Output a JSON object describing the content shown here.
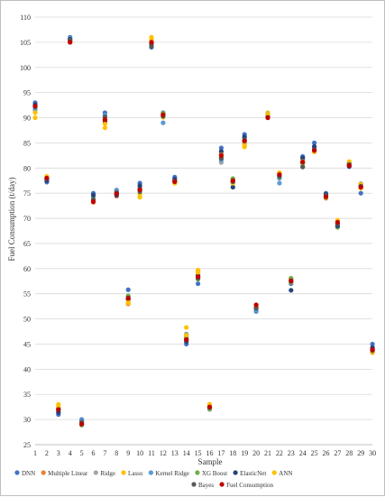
{
  "chart_data": {
    "type": "scatter",
    "title": "",
    "xlabel": "Sample",
    "ylabel": "Fuel Consumption (t/day)",
    "xlim": [
      1,
      30
    ],
    "ylim": [
      25,
      110
    ],
    "grid": true,
    "legend_position": "bottom",
    "x": [
      1,
      2,
      3,
      4,
      5,
      6,
      7,
      8,
      9,
      10,
      11,
      12,
      13,
      14,
      15,
      16,
      17,
      18,
      19,
      20,
      21,
      22,
      23,
      24,
      25,
      26,
      27,
      28,
      29,
      30
    ],
    "x_tick_labels": [
      "1",
      "2",
      "3",
      "4",
      "5",
      "6",
      "7",
      "8",
      "9",
      "10",
      "11",
      "12",
      "13",
      "14",
      "15",
      "16",
      "17",
      "18",
      "19",
      "20",
      "21",
      "22",
      "23",
      "24",
      "25",
      "26",
      "27",
      "28",
      "29",
      "30"
    ],
    "y_tick_labels": [
      "25",
      "30",
      "35",
      "40",
      "45",
      "50",
      "55",
      "60",
      "65",
      "70",
      "75",
      "80",
      "85",
      "90",
      "95",
      "100",
      "105",
      "110"
    ],
    "series": [
      {
        "name": "DNN",
        "color": "#4472c4",
        "values": [
          93.0,
          77.2,
          31.0,
          106.0,
          30.0,
          75.0,
          91.0,
          75.6,
          55.8,
          77.0,
          104.0,
          91.0,
          78.2,
          45.0,
          57.0,
          33.0,
          84.0,
          77.0,
          86.7,
          51.5,
          90.5,
          78.0,
          57.0,
          82.3,
          85.0,
          75.0,
          68.3,
          80.5,
          75.0,
          45.0
        ]
      },
      {
        "name": "Multiple Linear",
        "color": "#ed7d31",
        "values": [
          92.0,
          78.3,
          31.9,
          105.0,
          29.0,
          73.2,
          89.5,
          74.4,
          53.0,
          75.5,
          105.4,
          90.4,
          77.0,
          46.0,
          59.5,
          32.3,
          82.8,
          77.4,
          84.8,
          52.5,
          90.0,
          79.0,
          57.9,
          80.3,
          84.0,
          74.0,
          69.4,
          80.8,
          76.2,
          43.3
        ]
      },
      {
        "name": "Ridge",
        "color": "#a5a5a5",
        "values": [
          91.5,
          78.0,
          32.2,
          105.5,
          29.6,
          73.6,
          90.0,
          74.9,
          54.0,
          75.8,
          105.0,
          90.7,
          77.3,
          46.5,
          58.5,
          32.0,
          81.1,
          77.6,
          85.5,
          52.0,
          90.3,
          78.5,
          57.5,
          81.0,
          83.7,
          74.4,
          69.0,
          80.9,
          76.5,
          43.6
        ]
      },
      {
        "name": "Lasso",
        "color": "#ffc000",
        "values": [
          90.0,
          78.0,
          33.0,
          105.3,
          29.2,
          74.0,
          88.0,
          75.2,
          53.2,
          74.2,
          106.0,
          90.2,
          77.5,
          48.3,
          59.7,
          33.0,
          82.0,
          77.7,
          84.2,
          52.0,
          91.0,
          78.9,
          58.0,
          81.4,
          83.5,
          74.5,
          68.8,
          81.2,
          76.0,
          43.5
        ]
      },
      {
        "name": "Kernel Ridge",
        "color": "#5b9bd5",
        "values": [
          91.8,
          77.8,
          32.4,
          105.8,
          29.8,
          74.4,
          90.5,
          75.4,
          54.4,
          76.1,
          104.6,
          89.0,
          77.7,
          47.0,
          58.3,
          32.2,
          81.6,
          77.2,
          85.9,
          51.7,
          90.8,
          77.0,
          57.7,
          81.7,
          83.9,
          74.7,
          68.6,
          80.6,
          76.9,
          44.0
        ]
      },
      {
        "name": "XG Boost",
        "color": "#70ad47",
        "values": [
          92.4,
          78.1,
          31.6,
          105.2,
          28.9,
          73.8,
          89.8,
          74.8,
          54.6,
          75.9,
          104.3,
          90.9,
          77.2,
          46.2,
          57.9,
          32.1,
          82.2,
          77.9,
          85.2,
          52.2,
          90.4,
          78.2,
          58.1,
          80.9,
          83.4,
          74.2,
          68.2,
          81.0,
          76.6,
          43.8
        ]
      },
      {
        "name": "ElasticNet",
        "color": "#264478",
        "values": [
          92.6,
          77.5,
          31.4,
          105.6,
          29.4,
          74.6,
          89.2,
          74.6,
          53.8,
          76.5,
          104.8,
          90.5,
          77.8,
          45.5,
          58.7,
          32.6,
          83.3,
          76.2,
          86.2,
          52.4,
          90.2,
          78.4,
          55.7,
          82.0,
          84.3,
          74.8,
          68.5,
          80.3,
          76.3,
          44.3
        ]
      },
      {
        "name": "ANN",
        "color": "#ffc000",
        "values": [
          91.0,
          78.3,
          32.6,
          105.1,
          29.3,
          73.4,
          88.8,
          75.0,
          53.4,
          74.8,
          105.5,
          90.1,
          77.0,
          46.8,
          59.2,
          32.8,
          82.6,
          77.0,
          84.5,
          52.6,
          90.7,
          79.1,
          57.3,
          81.3,
          83.2,
          74.3,
          69.6,
          81.3,
          76.8,
          43.4
        ]
      },
      {
        "name": "Bayes",
        "color": "#595959",
        "values": [
          92.2,
          77.9,
          32.0,
          105.4,
          29.5,
          73.7,
          90.2,
          75.1,
          54.2,
          75.3,
          104.2,
          90.3,
          77.4,
          45.8,
          58.1,
          32.4,
          81.9,
          77.3,
          85.6,
          52.1,
          90.1,
          78.6,
          57.4,
          80.2,
          83.6,
          74.6,
          68.9,
          80.7,
          76.4,
          43.7
        ]
      },
      {
        "name": "Fuel Consumption",
        "color": "#c00000",
        "values": [
          92.3,
          78.0,
          32.0,
          105.0,
          29.1,
          73.3,
          89.6,
          74.9,
          54.1,
          75.7,
          105.0,
          90.6,
          77.3,
          45.9,
          58.4,
          32.5,
          82.5,
          77.5,
          85.4,
          52.8,
          90.0,
          78.7,
          57.6,
          81.2,
          83.5,
          74.3,
          69.2,
          80.5,
          76.2,
          43.9
        ]
      }
    ]
  }
}
